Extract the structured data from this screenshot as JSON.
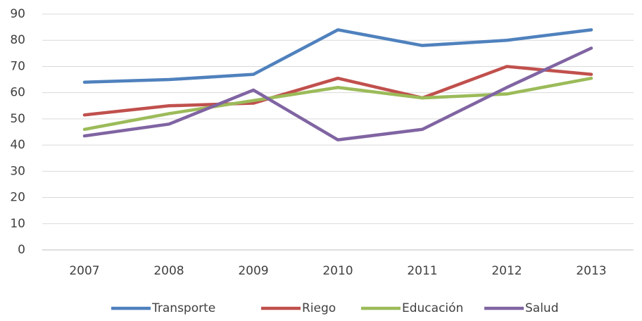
{
  "chart_data": {
    "type": "line",
    "categories": [
      "2007",
      "2008",
      "2009",
      "2010",
      "2011",
      "2012",
      "2013"
    ],
    "series": [
      {
        "name": "Transporte",
        "color": "#4f81bd",
        "values": [
          64,
          65,
          67,
          84,
          78,
          80,
          84
        ]
      },
      {
        "name": "Riego",
        "color": "#c0504d",
        "values": [
          51.5,
          55,
          56,
          65.5,
          58,
          70,
          67
        ]
      },
      {
        "name": "Educación",
        "color": "#9bbb59",
        "values": [
          46,
          52,
          57,
          62,
          58,
          59.5,
          65.5
        ]
      },
      {
        "name": "Salud",
        "color": "#8064a2",
        "values": [
          43.5,
          48,
          61,
          42,
          46,
          62,
          77
        ]
      }
    ],
    "ylim": [
      0,
      90
    ],
    "yticks": [
      0,
      10,
      20,
      30,
      40,
      50,
      60,
      70,
      80,
      90
    ],
    "grid": true,
    "legend": "bottom"
  }
}
